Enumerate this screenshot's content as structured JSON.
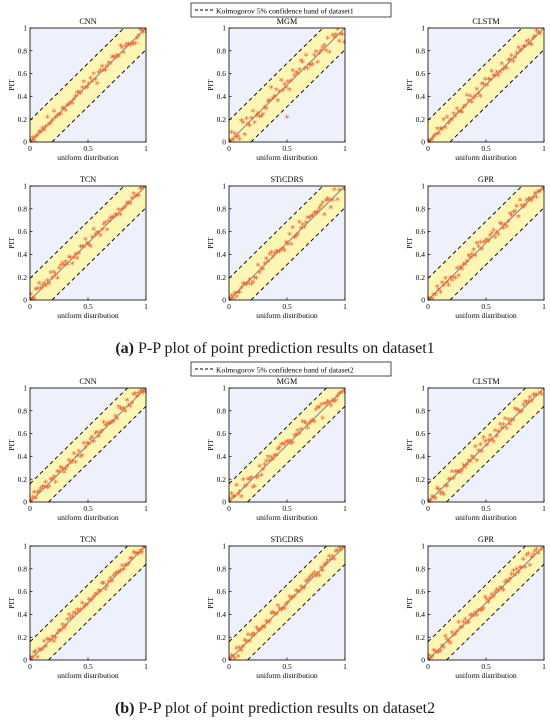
{
  "figure": {
    "captions": [
      {
        "label": "(a)",
        "text": " P-P plot of point prediction results on dataset1"
      },
      {
        "label": "(b)",
        "text": " P-P plot of point prediction results on dataset2"
      }
    ]
  },
  "colors": {
    "band_fill": "#fdf6b5",
    "background": "#eef0fb",
    "points": "#f0602a",
    "ideal_line": "#8f8f8f",
    "band_line": "#000000"
  },
  "chart_data": [
    {
      "panel": "a",
      "type": "scatter",
      "legend": "Kolmogorov 5% confidence band of dataset1",
      "band_halfwidth": 0.19,
      "subplots": [
        {
          "title": "CNN",
          "xlabel": "uniform distribution",
          "ylabel": "PIT",
          "xlim": [
            0,
            1
          ],
          "ylim": [
            0,
            1
          ],
          "xticks": [
            0,
            0.5,
            1
          ],
          "yticks": [
            0,
            0.2,
            0.4,
            0.6,
            0.8,
            1
          ],
          "spread": 0.04,
          "seed": 11
        },
        {
          "title": "MGM",
          "xlabel": "uniform distribution",
          "ylabel": "PIT",
          "xlim": [
            0,
            1
          ],
          "ylim": [
            0,
            1
          ],
          "xticks": [
            0,
            0.5,
            1
          ],
          "yticks": [
            0,
            0.2,
            0.4,
            0.6,
            0.8,
            1
          ],
          "spread": 0.07,
          "seed": 23,
          "outliers": [
            [
              0.5,
              0.21
            ]
          ]
        },
        {
          "title": "CLSTM",
          "xlabel": "uniform distribution",
          "ylabel": "PIT",
          "xlim": [
            0,
            1
          ],
          "ylim": [
            0,
            1
          ],
          "xticks": [
            0,
            0.5,
            1
          ],
          "yticks": [
            0,
            0.2,
            0.4,
            0.6,
            0.8,
            1
          ],
          "spread": 0.04,
          "seed": 37
        },
        {
          "title": "TCN",
          "xlabel": "uniform distribution",
          "ylabel": "PIT",
          "xlim": [
            0,
            1
          ],
          "ylim": [
            0,
            1
          ],
          "xticks": [
            0,
            0.5,
            1
          ],
          "yticks": [
            0,
            0.2,
            0.4,
            0.6,
            0.8,
            1
          ],
          "spread": 0.04,
          "seed": 41
        },
        {
          "title": "STiCDRS",
          "xlabel": "uniform distribution",
          "ylabel": "PIT",
          "xlim": [
            0,
            1
          ],
          "ylim": [
            0,
            1
          ],
          "xticks": [
            0,
            0.5,
            1
          ],
          "yticks": [
            0,
            0.2,
            0.4,
            0.6,
            0.8,
            1
          ],
          "spread": 0.05,
          "seed": 53
        },
        {
          "title": "GPR",
          "xlabel": "uniform distribution",
          "ylabel": "PIT",
          "xlim": [
            0,
            1
          ],
          "ylim": [
            0,
            1
          ],
          "xticks": [
            0,
            0.5,
            1
          ],
          "yticks": [
            0,
            0.2,
            0.4,
            0.6,
            0.8,
            1
          ],
          "spread": 0.04,
          "seed": 67
        }
      ]
    },
    {
      "panel": "b",
      "type": "scatter",
      "legend": "Kolmogorov 5% confidence band of dataset2",
      "band_halfwidth": 0.16,
      "subplots": [
        {
          "title": "CNN",
          "xlabel": "uniform distribution",
          "ylabel": "PIT",
          "xlim": [
            0,
            1
          ],
          "ylim": [
            0,
            1
          ],
          "xticks": [
            0,
            0.5,
            1
          ],
          "yticks": [
            0,
            0.2,
            0.4,
            0.6,
            0.8,
            1
          ],
          "spread": 0.04,
          "seed": 71
        },
        {
          "title": "MGM",
          "xlabel": "uniform distribution",
          "ylabel": "PIT",
          "xlim": [
            0,
            1
          ],
          "ylim": [
            0,
            1
          ],
          "xticks": [
            0,
            0.5,
            1
          ],
          "yticks": [
            0,
            0.2,
            0.4,
            0.6,
            0.8,
            1
          ],
          "spread": 0.05,
          "seed": 83
        },
        {
          "title": "CLSTM",
          "xlabel": "uniform distribution",
          "ylabel": "PIT",
          "xlim": [
            0,
            1
          ],
          "ylim": [
            0,
            1
          ],
          "xticks": [
            0,
            0.5,
            1
          ],
          "yticks": [
            0,
            0.2,
            0.4,
            0.6,
            0.8,
            1
          ],
          "spread": 0.04,
          "seed": 97
        },
        {
          "title": "TCN",
          "xlabel": "uniform distribution",
          "ylabel": "PIT",
          "xlim": [
            0,
            1
          ],
          "ylim": [
            0,
            1
          ],
          "xticks": [
            0,
            0.5,
            1
          ],
          "yticks": [
            0,
            0.2,
            0.4,
            0.6,
            0.8,
            1
          ],
          "spread": 0.03,
          "seed": 101
        },
        {
          "title": "STiCDRS",
          "xlabel": "uniform distribution",
          "ylabel": "PIT",
          "xlim": [
            0,
            1
          ],
          "ylim": [
            0,
            1
          ],
          "xticks": [
            0,
            0.5,
            1
          ],
          "yticks": [
            0,
            0.2,
            0.4,
            0.6,
            0.8,
            1
          ],
          "spread": 0.03,
          "seed": 113
        },
        {
          "title": "GPR",
          "xlabel": "uniform distribution",
          "ylabel": "PIT",
          "xlim": [
            0,
            1
          ],
          "ylim": [
            0,
            1
          ],
          "xticks": [
            0,
            0.5,
            1
          ],
          "yticks": [
            0,
            0.2,
            0.4,
            0.6,
            0.8,
            1
          ],
          "spread": 0.04,
          "seed": 127
        }
      ]
    }
  ]
}
